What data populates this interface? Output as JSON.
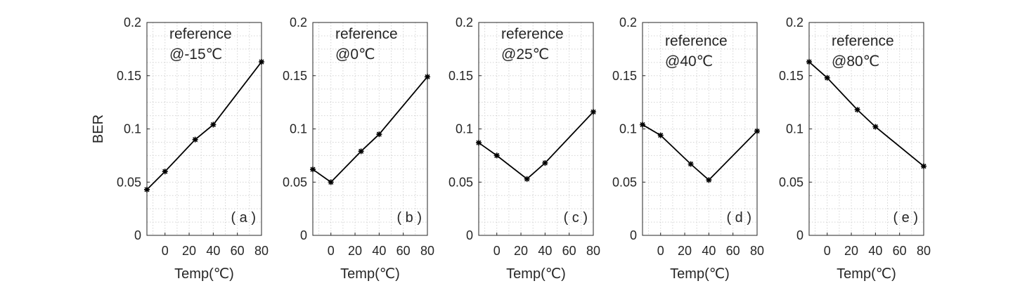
{
  "chart_data": [
    {
      "type": "line",
      "annotation": [
        "reference",
        "@-15℃"
      ],
      "panel_label": "( a )",
      "ylabel": "BER",
      "xlabel": "Temp(℃)",
      "xlim": [
        -15,
        80
      ],
      "ylim": [
        0,
        0.2
      ],
      "xticks": [
        0,
        20,
        40,
        60,
        80
      ],
      "yticks": [
        0,
        0.05,
        0.1,
        0.15,
        0.2
      ],
      "ytick_labels": [
        "0",
        "0.05",
        "0.1",
        "0.15",
        "0.2"
      ],
      "x": [
        -15,
        0,
        25,
        40,
        80
      ],
      "y": [
        0.043,
        0.06,
        0.09,
        0.104,
        0.163
      ]
    },
    {
      "type": "line",
      "annotation": [
        "reference",
        "@0℃"
      ],
      "panel_label": "( b )",
      "ylabel": "",
      "xlabel": "Temp(℃)",
      "xlim": [
        -15,
        80
      ],
      "ylim": [
        0,
        0.2
      ],
      "xticks": [
        0,
        20,
        40,
        60,
        80
      ],
      "yticks": [
        0,
        0.05,
        0.1,
        0.15,
        0.2
      ],
      "ytick_labels": [
        "0",
        "0.05",
        "0.1",
        "0.15",
        "0.2"
      ],
      "x": [
        -15,
        0,
        25,
        40,
        80
      ],
      "y": [
        0.062,
        0.05,
        0.079,
        0.095,
        0.149
      ]
    },
    {
      "type": "line",
      "annotation": [
        "reference",
        "@25℃"
      ],
      "panel_label": "( c )",
      "ylabel": "",
      "xlabel": "Temp(℃)",
      "xlim": [
        -15,
        80
      ],
      "ylim": [
        0,
        0.2
      ],
      "xticks": [
        0,
        20,
        40,
        60,
        80
      ],
      "yticks": [
        0,
        0.05,
        0.1,
        0.15,
        0.2
      ],
      "ytick_labels": [
        "0",
        "0.05",
        "0.1",
        "0.15",
        "0.2"
      ],
      "x": [
        -15,
        0,
        25,
        40,
        80
      ],
      "y": [
        0.087,
        0.075,
        0.053,
        0.068,
        0.116
      ]
    },
    {
      "type": "line",
      "annotation": [
        "reference",
        "@40℃"
      ],
      "panel_label": "( d )",
      "ylabel": "",
      "xlabel": "Temp(℃)",
      "xlim": [
        -15,
        80
      ],
      "ylim": [
        0,
        0.2
      ],
      "xticks": [
        0,
        20,
        40,
        60,
        80
      ],
      "yticks": [
        0,
        0.05,
        0.1,
        0.15,
        0.2
      ],
      "ytick_labels": [
        "0",
        "0.05",
        "0.1",
        "0.15",
        "0.2"
      ],
      "x": [
        -15,
        0,
        25,
        40,
        80
      ],
      "y": [
        0.104,
        0.094,
        0.067,
        0.052,
        0.098
      ]
    },
    {
      "type": "line",
      "annotation": [
        "reference",
        "@80℃"
      ],
      "panel_label": "( e )",
      "ylabel": "",
      "xlabel": "Temp(℃)",
      "xlim": [
        -15,
        80
      ],
      "ylim": [
        0,
        0.2
      ],
      "xticks": [
        0,
        20,
        40,
        60,
        80
      ],
      "yticks": [
        0,
        0.05,
        0.1,
        0.15,
        0.2
      ],
      "ytick_labels": [
        "0",
        "0.05",
        "0.1",
        "0.15",
        "0.2"
      ],
      "x": [
        -15,
        0,
        25,
        40,
        80
      ],
      "y": [
        0.163,
        0.148,
        0.118,
        0.102,
        0.065
      ]
    }
  ],
  "colors": {
    "line": "#000000",
    "axis": "#262626",
    "grid": "#d4d4d4",
    "background": "#ffffff"
  }
}
